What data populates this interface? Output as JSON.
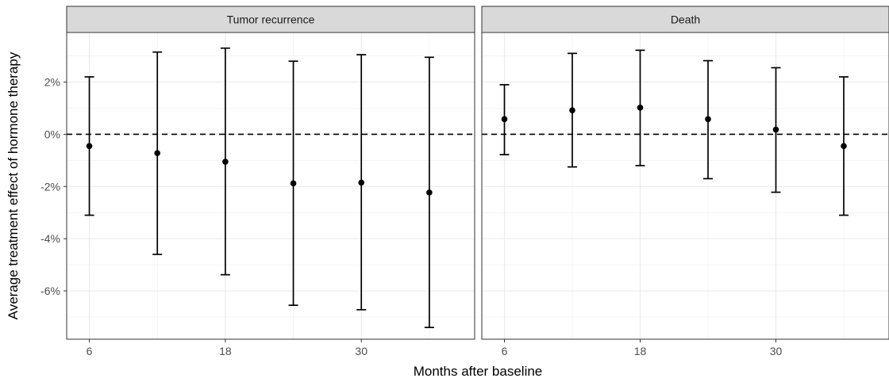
{
  "chart_data": {
    "type": "errorbar",
    "xlabel": "Months after baseline",
    "ylabel": "Average treatment effect of hormone therapy",
    "x_ticks": [
      6,
      18,
      30
    ],
    "y_ticks": [
      {
        "value": 2,
        "label": "2%"
      },
      {
        "value": 0,
        "label": "0%"
      },
      {
        "value": -2,
        "label": "-2%"
      },
      {
        "value": -4,
        "label": "-4%"
      },
      {
        "value": -6,
        "label": "-6%"
      }
    ],
    "xlim": [
      4,
      40
    ],
    "ylim": [
      -7.85,
      3.9
    ],
    "reference_line": 0,
    "grid": true,
    "panels": [
      {
        "title": "Tumor recurrence",
        "points": [
          {
            "x": 6,
            "estimate": -0.45,
            "lower": -3.1,
            "upper": 2.2
          },
          {
            "x": 12,
            "estimate": -0.72,
            "lower": -4.6,
            "upper": 3.15
          },
          {
            "x": 18,
            "estimate": -1.05,
            "lower": -5.38,
            "upper": 3.3
          },
          {
            "x": 24,
            "estimate": -1.88,
            "lower": -6.55,
            "upper": 2.8
          },
          {
            "x": 30,
            "estimate": -1.85,
            "lower": -6.72,
            "upper": 3.05
          },
          {
            "x": 36,
            "estimate": -2.23,
            "lower": -7.4,
            "upper": 2.95
          }
        ]
      },
      {
        "title": "Death",
        "points": [
          {
            "x": 6,
            "estimate": 0.58,
            "lower": -0.78,
            "upper": 1.9
          },
          {
            "x": 12,
            "estimate": 0.92,
            "lower": -1.25,
            "upper": 3.1
          },
          {
            "x": 18,
            "estimate": 1.02,
            "lower": -1.2,
            "upper": 3.22
          },
          {
            "x": 24,
            "estimate": 0.58,
            "lower": -1.7,
            "upper": 2.82
          },
          {
            "x": 30,
            "estimate": 0.18,
            "lower": -2.22,
            "upper": 2.55
          },
          {
            "x": 36,
            "estimate": -0.45,
            "lower": -3.1,
            "upper": 2.2
          }
        ]
      }
    ]
  }
}
